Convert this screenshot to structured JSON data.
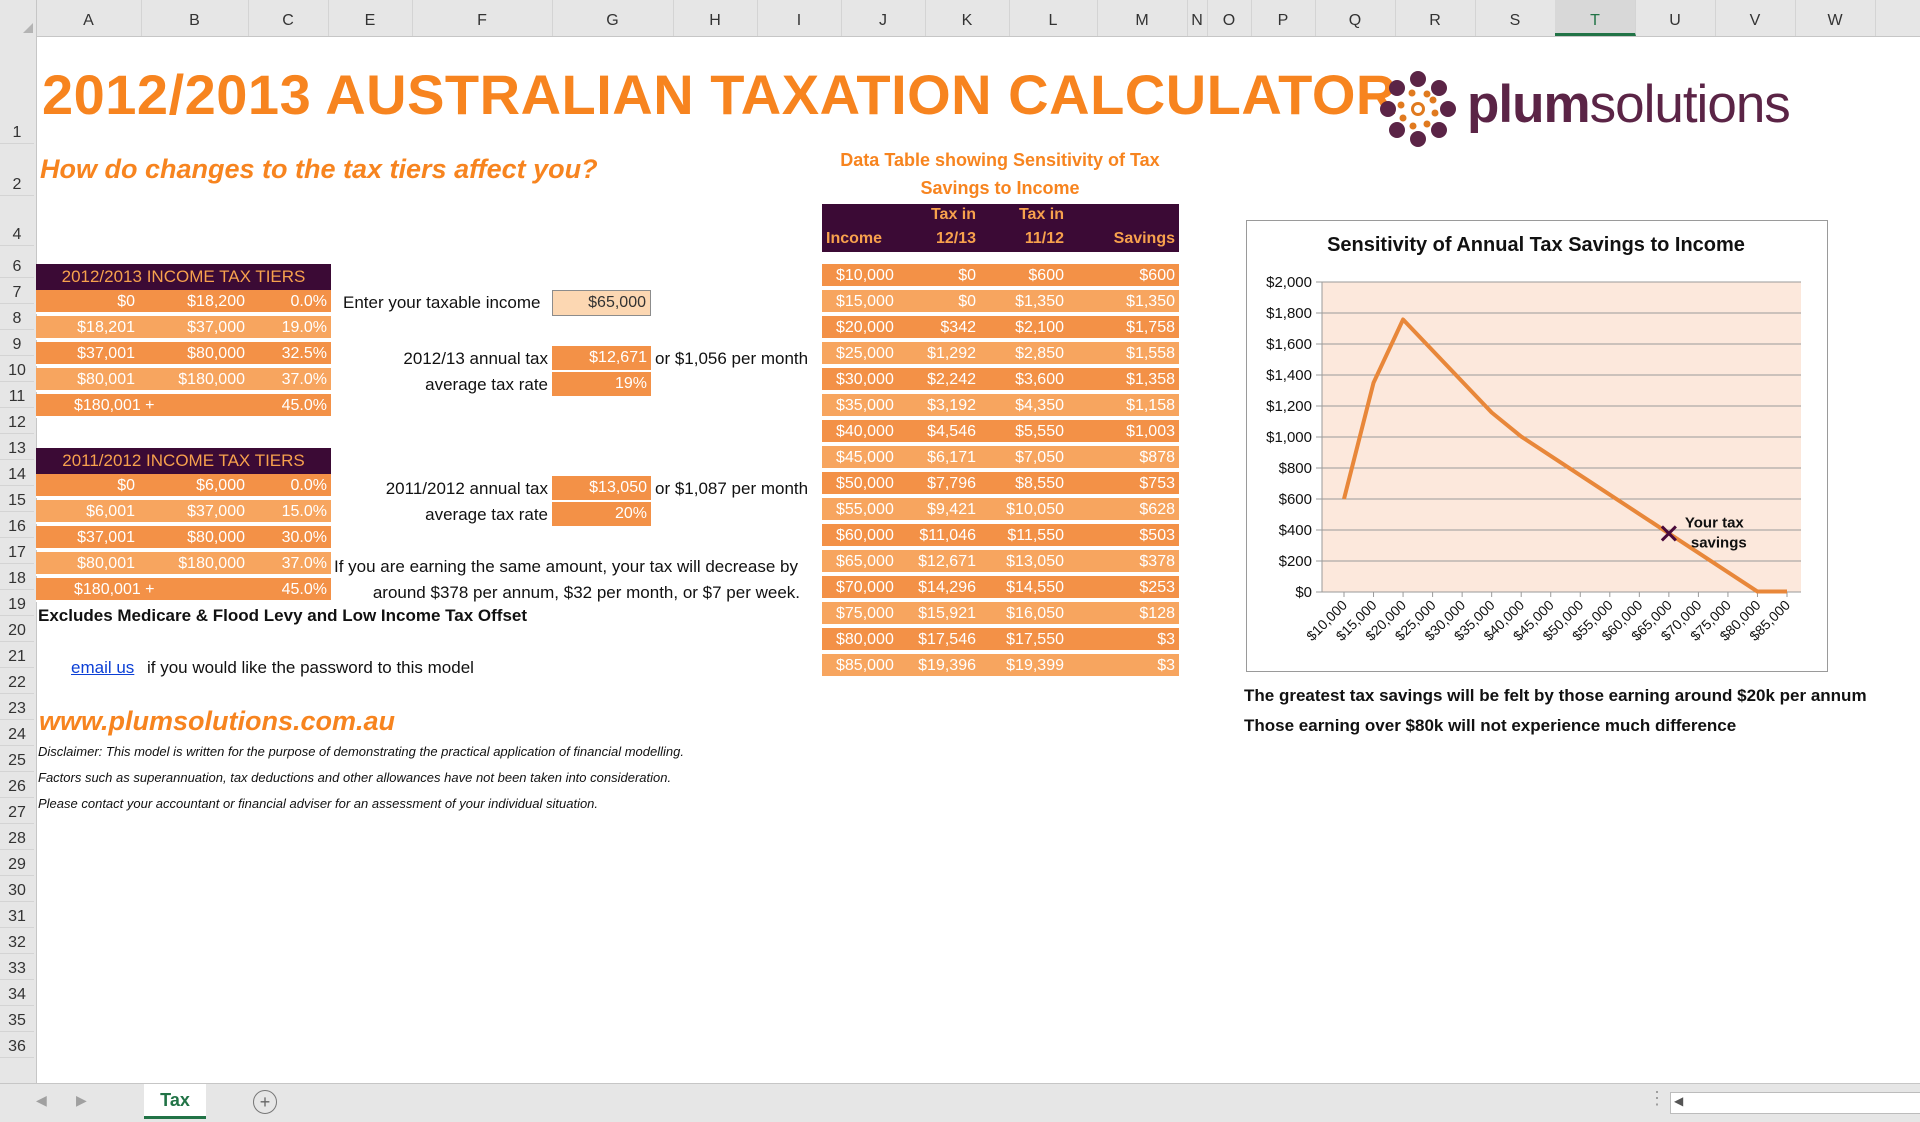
{
  "columns": [
    "A",
    "B",
    "C",
    "E",
    "F",
    "G",
    "H",
    "I",
    "J",
    "K",
    "L",
    "M",
    "N",
    "O",
    "P",
    "Q",
    "R",
    "S",
    "T",
    "U",
    "V",
    "W"
  ],
  "rows": [
    "1",
    "2",
    "4",
    "6",
    "7",
    "8",
    "9",
    "10",
    "11",
    "12",
    "13",
    "14",
    "15",
    "16",
    "17",
    "18",
    "19",
    "20",
    "21",
    "22",
    "23",
    "24",
    "25",
    "26",
    "27",
    "28",
    "29",
    "30",
    "31",
    "32",
    "33",
    "34",
    "35",
    "36"
  ],
  "title": "2012/2013 AUSTRALIAN TAXATION CALCULATOR",
  "subtitle": "How do changes to the tax tiers affect you?",
  "logo": {
    "word_a": "plum",
    "word_b": "solutions"
  },
  "tiers_2012": {
    "heading": "2012/2013 INCOME TAX TIERS",
    "rows": [
      [
        "$0",
        "$18,200",
        "0.0%"
      ],
      [
        "$18,201",
        "$37,000",
        "19.0%"
      ],
      [
        "$37,001",
        "$80,000",
        "32.5%"
      ],
      [
        "$80,001",
        "$180,000",
        "37.0%"
      ],
      [
        "$180,001 +",
        "",
        "45.0%"
      ]
    ]
  },
  "tiers_2011": {
    "heading": "2011/2012 INCOME TAX TIERS",
    "rows": [
      [
        "$0",
        "$6,000",
        "0.0%"
      ],
      [
        "$6,001",
        "$37,000",
        "15.0%"
      ],
      [
        "$37,001",
        "$80,000",
        "30.0%"
      ],
      [
        "$80,001",
        "$180,000",
        "37.0%"
      ],
      [
        "$180,001 +",
        "",
        "45.0%"
      ]
    ]
  },
  "calc": {
    "income_label": "Enter your taxable income",
    "income_value": "$65,000",
    "tax12_label": "2012/13 annual tax",
    "tax12_value": "$12,671",
    "tax12_month": "or $1,056 per month",
    "rate12_label": "average tax rate",
    "rate12_value": "19%",
    "tax11_label": "2011/2012 annual tax",
    "tax11_value": "$13,050",
    "tax11_month": "or $1,087 per month",
    "rate11_label": "average tax rate",
    "rate11_value": "20%",
    "summary_1": "If you are earning the same amount, your tax will decrease by",
    "summary_2": "around $378 per annum, $32 per month, or $7 per week."
  },
  "excludes": "Excludes Medicare & Flood Levy and Low Income Tax Offset",
  "email": {
    "link": "email us",
    "rest": "if you would like the password to this model"
  },
  "website": "www.plumsolutions.com.au",
  "disclaimer": [
    "Disclaimer: This model is written for the purpose of demonstrating the practical application of financial modelling.",
    "Factors such as superannuation, tax deductions and other allowances have not been taken into consideration.",
    "Please contact your accountant or financial adviser for an assessment of your individual situation."
  ],
  "data_table": {
    "title_1": "Data Table showing Sensitivity of Tax",
    "title_2": "Savings to Income",
    "headers": {
      "income": "Income",
      "tax1213_a": "Tax in",
      "tax1213_b": "12/13",
      "tax1112_a": "Tax in",
      "tax1112_b": "11/12",
      "savings": "Savings"
    },
    "rows": [
      [
        "$10,000",
        "$0",
        "$600",
        "$600"
      ],
      [
        "$15,000",
        "$0",
        "$1,350",
        "$1,350"
      ],
      [
        "$20,000",
        "$342",
        "$2,100",
        "$1,758"
      ],
      [
        "$25,000",
        "$1,292",
        "$2,850",
        "$1,558"
      ],
      [
        "$30,000",
        "$2,242",
        "$3,600",
        "$1,358"
      ],
      [
        "$35,000",
        "$3,192",
        "$4,350",
        "$1,158"
      ],
      [
        "$40,000",
        "$4,546",
        "$5,550",
        "$1,003"
      ],
      [
        "$45,000",
        "$6,171",
        "$7,050",
        "$878"
      ],
      [
        "$50,000",
        "$7,796",
        "$8,550",
        "$753"
      ],
      [
        "$55,000",
        "$9,421",
        "$10,050",
        "$628"
      ],
      [
        "$60,000",
        "$11,046",
        "$11,550",
        "$503"
      ],
      [
        "$65,000",
        "$12,671",
        "$13,050",
        "$378"
      ],
      [
        "$70,000",
        "$14,296",
        "$14,550",
        "$253"
      ],
      [
        "$75,000",
        "$15,921",
        "$16,050",
        "$128"
      ],
      [
        "$80,000",
        "$17,546",
        "$17,550",
        "$3"
      ],
      [
        "$85,000",
        "$19,396",
        "$19,399",
        "$3"
      ]
    ]
  },
  "chart_data": {
    "type": "line",
    "title": "Sensitivity of Annual Tax Savings to Income",
    "x": [
      "$10,000",
      "$15,000",
      "$20,000",
      "$25,000",
      "$30,000",
      "$35,000",
      "$40,000",
      "$45,000",
      "$50,000",
      "$55,000",
      "$60,000",
      "$65,000",
      "$70,000",
      "$75,000",
      "$80,000",
      "$85,000"
    ],
    "values": [
      600,
      1350,
      1758,
      1558,
      1358,
      1158,
      1003,
      878,
      753,
      628,
      503,
      378,
      253,
      128,
      3,
      3
    ],
    "ylim": [
      0,
      2000
    ],
    "yticks": [
      "$0",
      "$200",
      "$400",
      "$600",
      "$800",
      "$1,000",
      "$1,200",
      "$1,400",
      "$1,600",
      "$1,800",
      "$2,000"
    ],
    "marker": {
      "x": "$65,000",
      "value": 378,
      "label_1": "Your tax",
      "label_2": "savings"
    },
    "grid": true,
    "line_color": "#e8873a",
    "plot_bg": "#fce8dc"
  },
  "chart_notes": [
    "The greatest tax savings will be felt by those earning around $20k per annum",
    "Those earning over $80k will not experience much difference"
  ],
  "sheet_tab": "Tax",
  "colors": {
    "orange": "#f7841f",
    "plum": "#3b0a35",
    "cell_a": "#f39147",
    "cell_b": "#f7a55f"
  }
}
